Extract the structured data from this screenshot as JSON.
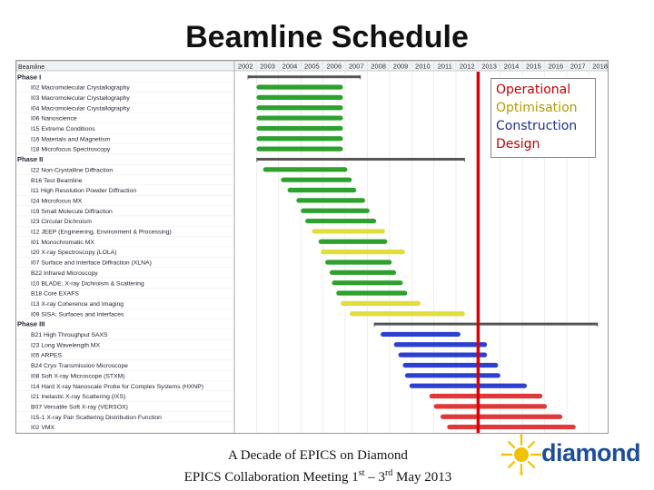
{
  "page": {
    "title": "Beamline Schedule"
  },
  "footer": {
    "line1": "A Decade of EPICS on Diamond",
    "line2_prefix": "EPICS Collaboration Meeting 1",
    "line2_sup1": "st",
    "line2_mid": " – 3",
    "line2_sup2": "rd",
    "line2_suffix": " May 2013"
  },
  "logo": {
    "text": "diamond"
  },
  "legend": {
    "items": [
      {
        "label": "Operational",
        "color": "#c00000"
      },
      {
        "label": "Optimisation",
        "color": "#b59a00"
      },
      {
        "label": "Construction",
        "color": "#1f2d9c"
      },
      {
        "label": "Design",
        "color": "#c00000"
      }
    ]
  },
  "chart_data": {
    "type": "gantt",
    "header_label": "Beamline",
    "years": [
      "2002",
      "2003",
      "2004",
      "2005",
      "2006",
      "2007",
      "2008",
      "2009",
      "2010",
      "2011",
      "2012",
      "2013",
      "2014",
      "2015",
      "2016",
      "2017",
      "2018"
    ],
    "today_marker": 2013.0,
    "colors": {
      "green": "#2ea02e",
      "yellow": "#e2dc3c",
      "blue": "#2c3fd0",
      "red": "#e03838",
      "summary": "#555555"
    },
    "rows": [
      {
        "label": "Phase I",
        "kind": "phase",
        "start": 2002.6,
        "end": 2007.7
      },
      {
        "label": "I02 Macromolecular Crystallography",
        "color": "green",
        "start": 2003.0,
        "end": 2006.9
      },
      {
        "label": "I03 Macromolecular Crystallography",
        "color": "green",
        "start": 2003.0,
        "end": 2006.9
      },
      {
        "label": "I04 Macromolecular Crystallography",
        "color": "green",
        "start": 2003.0,
        "end": 2006.9
      },
      {
        "label": "I06 Nanoscience",
        "color": "green",
        "start": 2003.0,
        "end": 2006.9
      },
      {
        "label": "I15 Extreme Conditions",
        "color": "green",
        "start": 2003.0,
        "end": 2006.9
      },
      {
        "label": "I16 Materials and Magnetism",
        "color": "green",
        "start": 2003.0,
        "end": 2006.9
      },
      {
        "label": "I18 Microfocus Spectroscopy",
        "color": "green",
        "start": 2003.0,
        "end": 2006.9
      },
      {
        "label": "Phase II",
        "kind": "phase",
        "start": 2003.0,
        "end": 2012.4
      },
      {
        "label": "I22 Non-Crystalline Diffraction",
        "color": "green",
        "start": 2003.3,
        "end": 2007.1
      },
      {
        "label": "B16 Test Beamline",
        "color": "green",
        "start": 2004.1,
        "end": 2007.3
      },
      {
        "label": "I11 High Resolution Powder Diffraction",
        "color": "green",
        "start": 2004.4,
        "end": 2007.5
      },
      {
        "label": "I24 Microfocus MX",
        "color": "green",
        "start": 2004.8,
        "end": 2007.9
      },
      {
        "label": "I19 Small Molecule Diffraction",
        "color": "green",
        "start": 2005.0,
        "end": 2008.1
      },
      {
        "label": "I23 Circular Dichroism",
        "color": "green",
        "start": 2005.2,
        "end": 2008.4
      },
      {
        "label": "I12 JEEP (Engineering, Environment & Processing)",
        "color": "yellow",
        "start": 2005.5,
        "end": 2008.8
      },
      {
        "label": "I01 Monochromatic MX",
        "color": "green",
        "start": 2005.8,
        "end": 2008.9
      },
      {
        "label": "I20 X-ray Spectroscopy (LOLA)",
        "color": "yellow",
        "start": 2005.9,
        "end": 2009.7
      },
      {
        "label": "I07 Surface and Interface Diffraction (XLNA)",
        "color": "green",
        "start": 2006.1,
        "end": 2009.1
      },
      {
        "label": "B22 Infrared Microscopy",
        "color": "green",
        "start": 2006.3,
        "end": 2009.3
      },
      {
        "label": "I10 BLADE: X-ray Dichroism & Scattering",
        "color": "green",
        "start": 2006.4,
        "end": 2009.6
      },
      {
        "label": "B18 Core EXAFS",
        "color": "green",
        "start": 2006.6,
        "end": 2009.8
      },
      {
        "label": "I13 X-ray Coherence and Imaging",
        "color": "yellow",
        "start": 2006.8,
        "end": 2010.4
      },
      {
        "label": "I09 SISA: Surfaces and Interfaces",
        "color": "yellow",
        "start": 2007.2,
        "end": 2012.4
      },
      {
        "label": "Phase III",
        "kind": "phase",
        "start": 2008.3,
        "end": 2018.4
      },
      {
        "label": "B21 High Throughput SAXS",
        "color": "blue",
        "start": 2008.6,
        "end": 2012.2
      },
      {
        "label": "I23 Long Wavelength MX",
        "color": "blue",
        "start": 2009.2,
        "end": 2013.4
      },
      {
        "label": "I05 ARPES",
        "color": "blue",
        "start": 2009.4,
        "end": 2013.4
      },
      {
        "label": "B24 Cryo Transmission Microscope",
        "color": "blue",
        "start": 2009.6,
        "end": 2013.9
      },
      {
        "label": "I08 Soft X-ray Microscope (STXM)",
        "color": "blue",
        "start": 2009.7,
        "end": 2014.0
      },
      {
        "label": "I14 Hard X-ray Nanoscale Probe for Complex Systems (HXNP)",
        "color": "blue",
        "start": 2009.9,
        "end": 2015.2
      },
      {
        "label": "I21 Inelastic X-ray Scattering (IXS)",
        "color": "red",
        "start": 2010.8,
        "end": 2015.9
      },
      {
        "label": "B07 Versatile Soft X-ray (VERSOX)",
        "color": "red",
        "start": 2011.0,
        "end": 2016.1
      },
      {
        "label": "I15-1 X-ray Pair Scattering Distribution Function",
        "color": "red",
        "start": 2011.3,
        "end": 2016.8
      },
      {
        "label": "I02 VMX",
        "color": "red",
        "start": 2011.6,
        "end": 2017.4
      }
    ]
  }
}
